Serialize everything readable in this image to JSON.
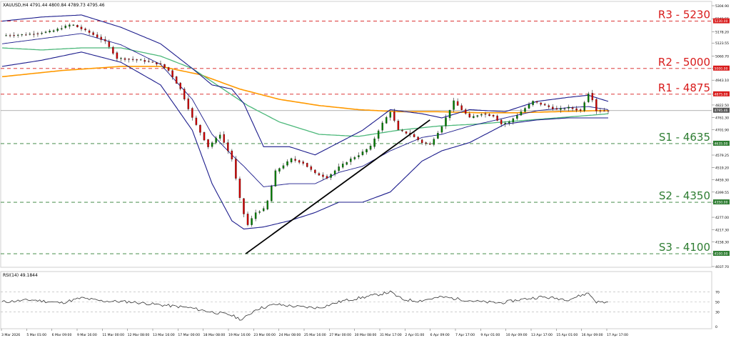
{
  "colors": {
    "bull": "#008000",
    "bear": "#d00000",
    "resistance": "#d81b1b",
    "support": "#2e7d32",
    "bollinger": "#1c1c8c",
    "ma_green": "#4cb87a",
    "ma_orange": "#ff9900",
    "trendline": "#000000",
    "rsi_line": "#333333"
  },
  "chart_data": [
    {
      "type": "candlestick",
      "title": "XAUUSD,H4  4791.44 4800.84 4789.73 4795.46",
      "symbol": "XAUUSD",
      "timeframe": "H4",
      "ohlc_readout": [
        "4791.44",
        "4800.84",
        "4789.73",
        "4795.46"
      ],
      "current_price": 4795.46,
      "current_price_label": "4795.46",
      "ylim": [
        4037.7,
        5304.9
      ],
      "y_ticks": [
        "5304.90",
        "5241.55",
        "5178.20",
        "5123.55",
        "5060.70",
        "5000.00",
        "4943.10",
        "4875.00",
        "4822.50",
        "4761.30",
        "4701.90",
        "4635.00",
        "4579.25",
        "4519.20",
        "4459.30",
        "4399.55",
        "4350.00",
        "4277.00",
        "4217.30",
        "4158.30",
        "4100.00",
        "4037.70"
      ],
      "x_ticks": [
        "3 Mar 2026",
        "5 Mar 01:00",
        "6 Mar 09:00",
        "9 Mar 16:00",
        "11 Mar 00:00",
        "12 Mar 08:00",
        "13 Mar 16:00",
        "17 Mar 00:00",
        "18 Mar 08:00",
        "19 Mar 16:00",
        "23 Mar 00:00",
        "24 Mar 08:00",
        "25 Mar 16:00",
        "27 Mar 00:00",
        "30 Mar 08:00",
        "31 Mar 17:00",
        "2 Apr 01:00",
        "6 Apr 09:00",
        "7 Apr 17:00",
        "9 Apr 01:00",
        "10 Apr 09:00",
        "13 Apr 17:00",
        "15 Apr 01:00",
        "16 Apr 09:00",
        "17 Apr 17:00"
      ],
      "levels": [
        {
          "name": "R3",
          "label": "R3 - 5230",
          "price": 5230,
          "tag": "5230.00",
          "kind": "resistance"
        },
        {
          "name": "R2",
          "label": "R2 - 5000",
          "price": 5000,
          "tag": "5000.00",
          "kind": "resistance"
        },
        {
          "name": "R1",
          "label": "R1 - 4875",
          "price": 4875,
          "tag": "4875.00",
          "kind": "resistance"
        },
        {
          "name": "S1",
          "label": "S1 - 4635",
          "price": 4635,
          "tag": "4635.00",
          "kind": "support"
        },
        {
          "name": "S2",
          "label": "S2 - 4350",
          "price": 4350,
          "tag": "4350.00",
          "kind": "support"
        },
        {
          "name": "S3",
          "label": "S3 - 4100",
          "price": 4100,
          "tag": "4100.00",
          "kind": "support"
        }
      ],
      "price_anchors": [
        [
          0,
          5160
        ],
        [
          12,
          5165
        ],
        [
          25,
          5180
        ],
        [
          35,
          5215
        ],
        [
          45,
          5170
        ],
        [
          52,
          5130
        ],
        [
          58,
          5050
        ],
        [
          70,
          5040
        ],
        [
          80,
          5020
        ],
        [
          84,
          4990
        ],
        [
          90,
          4900
        ],
        [
          96,
          4760
        ],
        [
          104,
          4620
        ],
        [
          110,
          4680
        ],
        [
          116,
          4560
        ],
        [
          121,
          4320
        ],
        [
          124,
          4240
        ],
        [
          128,
          4300
        ],
        [
          133,
          4320
        ],
        [
          138,
          4500
        ],
        [
          146,
          4560
        ],
        [
          152,
          4540
        ],
        [
          158,
          4490
        ],
        [
          164,
          4470
        ],
        [
          170,
          4520
        ],
        [
          176,
          4560
        ],
        [
          180,
          4580
        ],
        [
          186,
          4620
        ],
        [
          191,
          4720
        ],
        [
          196,
          4790
        ],
        [
          200,
          4700
        ],
        [
          206,
          4680
        ],
        [
          212,
          4640
        ],
        [
          216,
          4630
        ],
        [
          222,
          4720
        ],
        [
          228,
          4840
        ],
        [
          232,
          4800
        ],
        [
          236,
          4760
        ],
        [
          242,
          4780
        ],
        [
          248,
          4770
        ],
        [
          252,
          4730
        ],
        [
          256,
          4740
        ],
        [
          262,
          4790
        ],
        [
          268,
          4840
        ],
        [
          274,
          4820
        ],
        [
          280,
          4800
        ],
        [
          286,
          4810
        ],
        [
          292,
          4795
        ],
        [
          296,
          4880
        ],
        [
          298,
          4850
        ],
        [
          300,
          4795
        ],
        [
          306,
          4795
        ]
      ],
      "bollinger_anchors": [
        [
          0,
          5230,
          5010
        ],
        [
          20,
          5250,
          5040
        ],
        [
          40,
          5260,
          5080
        ],
        [
          60,
          5200,
          5030
        ],
        [
          80,
          5120,
          4920
        ],
        [
          96,
          5000,
          4700
        ],
        [
          106,
          4920,
          4440
        ],
        [
          116,
          4900,
          4260
        ],
        [
          122,
          4830,
          4220
        ],
        [
          132,
          4620,
          4230
        ],
        [
          145,
          4620,
          4260
        ],
        [
          158,
          4580,
          4300
        ],
        [
          170,
          4640,
          4350
        ],
        [
          182,
          4700,
          4350
        ],
        [
          196,
          4800,
          4400
        ],
        [
          212,
          4780,
          4550
        ],
        [
          222,
          4760,
          4600
        ],
        [
          236,
          4800,
          4640
        ],
        [
          254,
          4790,
          4730
        ],
        [
          270,
          4840,
          4750
        ],
        [
          286,
          4860,
          4760
        ],
        [
          296,
          4870,
          4760
        ],
        [
          306,
          4840,
          4760
        ]
      ],
      "ma_green_anchors": [
        [
          0,
          5100
        ],
        [
          20,
          5090
        ],
        [
          40,
          5100
        ],
        [
          60,
          5100
        ],
        [
          80,
          5060
        ],
        [
          96,
          5000
        ],
        [
          110,
          4910
        ],
        [
          124,
          4820
        ],
        [
          140,
          4740
        ],
        [
          160,
          4680
        ],
        [
          180,
          4670
        ],
        [
          200,
          4700
        ],
        [
          220,
          4720
        ],
        [
          240,
          4730
        ],
        [
          260,
          4745
        ],
        [
          280,
          4760
        ],
        [
          300,
          4775
        ],
        [
          306,
          4780
        ]
      ],
      "ma_orange_anchors": [
        [
          0,
          4960
        ],
        [
          30,
          4990
        ],
        [
          60,
          5010
        ],
        [
          80,
          5010
        ],
        [
          100,
          4970
        ],
        [
          120,
          4900
        ],
        [
          140,
          4850
        ],
        [
          160,
          4820
        ],
        [
          180,
          4800
        ],
        [
          200,
          4790
        ],
        [
          220,
          4790
        ],
        [
          240,
          4785
        ],
        [
          260,
          4785
        ],
        [
          280,
          4790
        ],
        [
          300,
          4795
        ],
        [
          306,
          4795
        ]
      ],
      "trendline": [
        [
          123,
          4100
        ],
        [
          216,
          4750
        ]
      ]
    },
    {
      "type": "line",
      "title": "RSI(14) 49.1844",
      "indicator": "RSI(14)",
      "last_value": 49.1844,
      "last_value_label": "49.1844",
      "ylim": [
        0,
        100
      ],
      "y_ticks": [
        "70",
        "50",
        "30",
        "0"
      ],
      "levels": [
        70,
        50,
        30
      ],
      "rsi_anchors": [
        [
          0,
          50
        ],
        [
          15,
          54
        ],
        [
          30,
          48
        ],
        [
          40,
          58
        ],
        [
          50,
          52
        ],
        [
          65,
          50
        ],
        [
          75,
          46
        ],
        [
          85,
          42
        ],
        [
          95,
          38
        ],
        [
          105,
          30
        ],
        [
          115,
          24
        ],
        [
          121,
          14
        ],
        [
          124,
          22
        ],
        [
          128,
          35
        ],
        [
          138,
          45
        ],
        [
          150,
          40
        ],
        [
          160,
          38
        ],
        [
          172,
          52
        ],
        [
          186,
          62
        ],
        [
          196,
          70
        ],
        [
          202,
          55
        ],
        [
          210,
          52
        ],
        [
          222,
          60
        ],
        [
          232,
          55
        ],
        [
          242,
          50
        ],
        [
          252,
          48
        ],
        [
          262,
          55
        ],
        [
          272,
          60
        ],
        [
          286,
          55
        ],
        [
          296,
          68
        ],
        [
          300,
          50
        ],
        [
          306,
          49
        ]
      ]
    }
  ]
}
